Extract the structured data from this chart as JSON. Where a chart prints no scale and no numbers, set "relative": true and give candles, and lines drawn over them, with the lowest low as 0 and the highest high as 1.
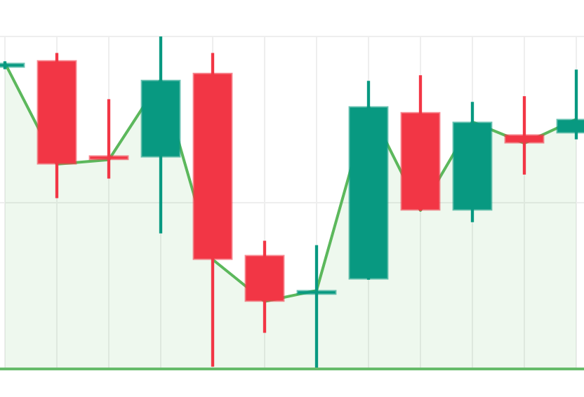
{
  "chart_data": {
    "type": "candlestick",
    "relative": true,
    "categories": [
      null,
      null,
      null,
      null,
      null,
      null,
      null,
      null,
      null,
      null,
      null,
      null
    ],
    "ohlc": [
      [
        0.907,
        0.924,
        0.903,
        0.92
      ],
      [
        0.928,
        0.949,
        0.515,
        0.616
      ],
      [
        0.637,
        0.81,
        0.574,
        0.629
      ],
      [
        0.637,
        1,
        0.409,
        0.869
      ],
      [
        0.89,
        0.949,
        0.008,
        0.329
      ],
      [
        0.342,
        0.384,
        0.11,
        0.203
      ],
      [
        0.224,
        0.371,
        0,
        0.236
      ],
      [
        0.27,
        0.865,
        0.27,
        0.789
      ],
      [
        0.772,
        0.882,
        0.477,
        0.477
      ],
      [
        0.477,
        0.802,
        0.443,
        0.743
      ],
      [
        0.705,
        0.819,
        0.586,
        0.679
      ],
      [
        0.709,
        0.899,
        0.692,
        0.751
      ]
    ],
    "colors": [
      "#089981",
      "#f23645",
      "#f23645",
      "#089981",
      "#f23645",
      "#f23645",
      "#089981",
      "#089981",
      "#f23645",
      "#089981",
      "#f23645",
      "#089981"
    ],
    "series": [
      {
        "type": "area",
        "color": "#5cb85c",
        "values": [
          0.92,
          0.616,
          0.629,
          0.869,
          0.329,
          0.203,
          0.236,
          0.789,
          0.477,
          0.743,
          0.679,
          0.751
        ]
      }
    ],
    "ref_lines": [
      {
        "axis": "y",
        "value": 0,
        "color": "#66bb6a"
      }
    ],
    "grid": true,
    "legend": false
  }
}
